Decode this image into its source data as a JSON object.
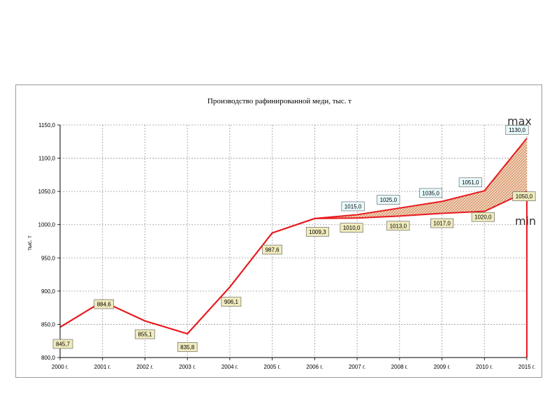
{
  "chart_data": {
    "type": "line",
    "title": "Производство рафинированной меди, тыс. т",
    "ylabel": "тыс. т",
    "xlabel": "",
    "categories": [
      "2000 г.",
      "2001 г.",
      "2002 г.",
      "2003 г.",
      "2004 г.",
      "2005 г.",
      "2006 г.",
      "2007 г.",
      "2008 г.",
      "2009 г.",
      "2010 г.",
      "2015 г."
    ],
    "ylim": [
      800,
      1150
    ],
    "yticks": [
      "800,0",
      "850,0",
      "900,0",
      "950,0",
      "1000,0",
      "1050,0",
      "1100,0",
      "1150,0"
    ],
    "grid": true,
    "series": [
      {
        "name": "max",
        "values": [
          845.7,
          884.6,
          855.1,
          835.8,
          906.1,
          987.6,
          1009.3,
          1015.0,
          1025.0,
          1035.0,
          1051.0,
          1130.0
        ],
        "labels": [
          "845,7",
          "884,6",
          "855,1",
          "835,8",
          "906,1",
          "987,6",
          "1009,3",
          "1015,0",
          "1025,0",
          "1035,0",
          "1051,0",
          "1130,0"
        ]
      },
      {
        "name": "min",
        "values": [
          845.7,
          884.6,
          855.1,
          835.8,
          906.1,
          987.6,
          1009.3,
          1010.0,
          1013.0,
          1017.0,
          1020.0,
          1050.0
        ],
        "labels": [
          "845,7",
          "884,6",
          "855,1",
          "835,8",
          "906,1",
          "987,6",
          "1009,3",
          "1010,0",
          "1013,0",
          "1017,0",
          "1020,0",
          "1050,0"
        ]
      }
    ],
    "colors": {
      "line": "#e8191e",
      "band_fill": "#f4d9c2",
      "band_hatch": "#c97a4a",
      "grid": "#9a9a9a",
      "label_box_low": "#f0ebbd",
      "label_box_high": "#e8fbfd"
    },
    "annotations": {
      "max_label": "max",
      "min_label": "min"
    }
  }
}
